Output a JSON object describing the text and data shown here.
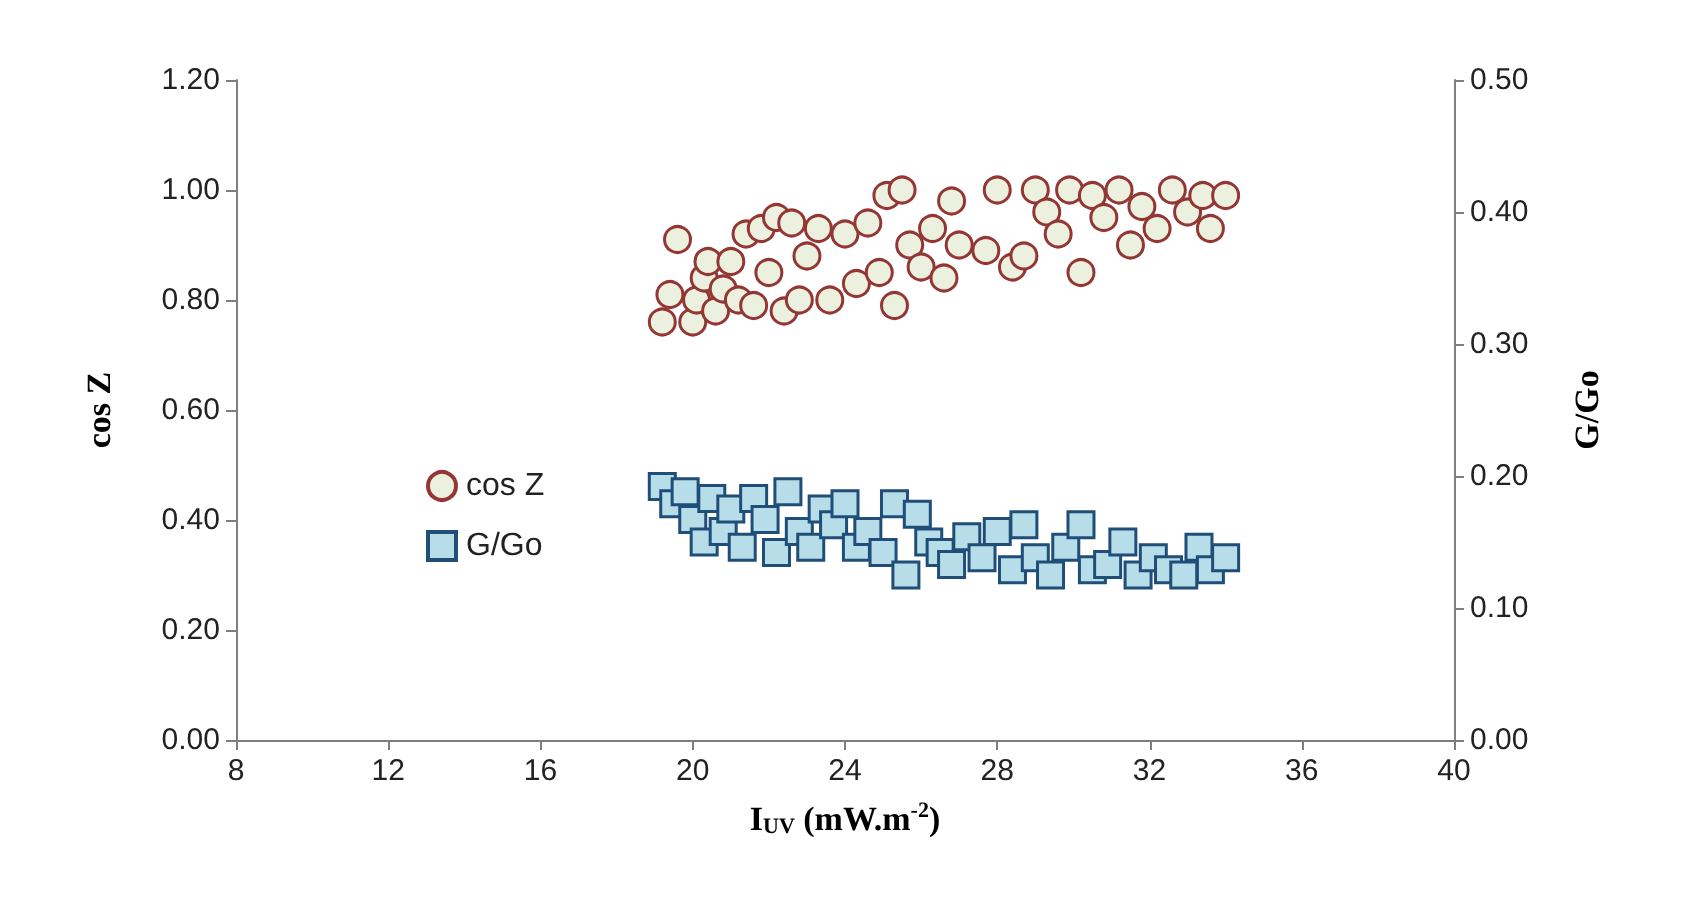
{
  "chart_data": {
    "type": "scatter",
    "xlabel": "I$_{UV}$ (mW.m$^{-2}$)",
    "ylabel": "cos Z",
    "y2label": "G/Go",
    "xlim": [
      8,
      40
    ],
    "xticks": [
      8,
      12,
      16,
      20,
      24,
      28,
      32,
      36,
      40
    ],
    "ylim": [
      0,
      1.2
    ],
    "yticks": [
      {
        "value": 0,
        "label": "0.00"
      },
      {
        "value": 0.2,
        "label": "0.20"
      },
      {
        "value": 0.4,
        "label": "0.40"
      },
      {
        "value": 0.6,
        "label": "0.60"
      },
      {
        "value": 0.8,
        "label": "0.80"
      },
      {
        "value": 1.0,
        "label": "1.00"
      },
      {
        "value": 1.2,
        "label": "1.20"
      }
    ],
    "y2lim": [
      0,
      0.5
    ],
    "y2ticks": [
      {
        "value": 0,
        "label": "0.00"
      },
      {
        "value": 0.1,
        "label": "0.10"
      },
      {
        "value": 0.2,
        "label": "0.20"
      },
      {
        "value": 0.3,
        "label": "0.30"
      },
      {
        "value": 0.4,
        "label": "0.40"
      },
      {
        "value": 0.5,
        "label": "0.50"
      }
    ],
    "grid": false,
    "legend": "left",
    "series": [
      {
        "name": "cos Z",
        "color": "#ebf1de",
        "marker": "circle",
        "x": [
          19.2,
          19.4,
          19.6,
          19.8,
          20.0,
          20.1,
          20.3,
          20.4,
          20.6,
          20.8,
          21.0,
          21.2,
          21.4,
          21.6,
          21.8,
          22.0,
          22.2,
          22.4,
          22.6,
          22.8,
          23.0,
          23.3,
          23.6,
          24.0,
          24.3,
          24.6,
          24.9,
          25.1,
          25.3,
          25.5,
          25.7,
          26.0,
          26.3,
          26.6,
          26.8,
          27.0,
          27.7,
          28.0,
          28.4,
          28.7,
          29.0,
          29.3,
          29.6,
          29.9,
          30.2,
          30.5,
          30.8,
          31.2,
          31.5,
          31.8,
          32.2,
          32.6,
          33.0,
          33.4,
          33.6,
          34.0
        ],
        "values": [
          0.76,
          0.81,
          0.91,
          null,
          0.76,
          0.8,
          0.84,
          0.87,
          0.78,
          0.82,
          0.87,
          0.8,
          0.92,
          0.79,
          0.93,
          0.85,
          0.95,
          0.78,
          0.94,
          0.8,
          0.88,
          0.93,
          0.8,
          0.92,
          0.83,
          0.94,
          0.85,
          0.99,
          0.79,
          1.0,
          0.9,
          0.86,
          0.93,
          0.84,
          0.98,
          0.9,
          0.89,
          1.0,
          0.86,
          0.88,
          1.0,
          0.96,
          0.92,
          1.0,
          0.85,
          0.99,
          0.95,
          1.0,
          0.9,
          0.97,
          0.93,
          1.0,
          0.96,
          0.99,
          0.93,
          0.99
        ]
      },
      {
        "name": "G/Go",
        "color": "#b7dde8",
        "marker": "square",
        "axis": "y2",
        "x": [
          19.2,
          19.5,
          19.8,
          20.0,
          20.3,
          20.5,
          20.8,
          21.0,
          21.3,
          21.6,
          21.9,
          22.2,
          22.5,
          22.8,
          23.1,
          23.4,
          23.7,
          24.0,
          24.3,
          24.6,
          25.0,
          25.3,
          25.6,
          25.9,
          26.2,
          26.5,
          26.8,
          27.2,
          27.6,
          28.0,
          28.4,
          28.7,
          29.0,
          29.4,
          29.8,
          30.2,
          30.5,
          30.9,
          31.3,
          31.7,
          32.1,
          32.5,
          32.9,
          33.3,
          33.6,
          34.0
        ],
        "values": [
          0.192,
          0.179,
          0.188,
          0.167,
          0.15,
          0.183,
          0.158,
          0.175,
          0.146,
          0.183,
          0.167,
          0.142,
          0.188,
          0.158,
          0.146,
          0.175,
          0.163,
          0.179,
          0.146,
          0.158,
          0.142,
          0.179,
          0.125,
          0.171,
          0.15,
          0.142,
          0.133,
          0.154,
          0.138,
          0.158,
          0.129,
          0.163,
          0.138,
          0.125,
          0.146,
          0.163,
          0.129,
          0.133,
          0.15,
          0.125,
          0.138,
          0.129,
          0.125,
          0.146,
          0.129,
          0.138
        ]
      }
    ]
  }
}
